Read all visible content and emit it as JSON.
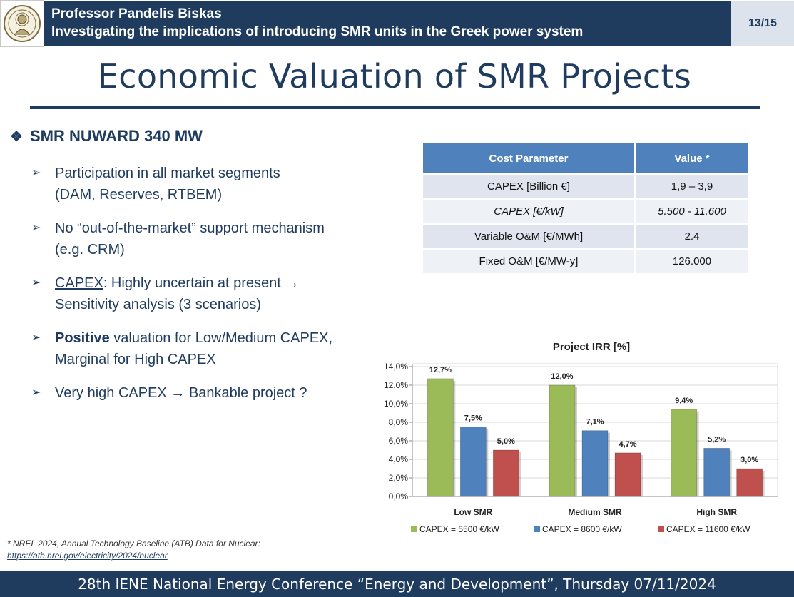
{
  "header": {
    "line1": "Professor Pandelis Biskas",
    "line2": "Investigating the implications of introducing SMR units in the Greek power system",
    "page": "13/15"
  },
  "title": "Economic Valuation of SMR Projects",
  "main_bullet": "SMR NUWARD 340 MW",
  "bullets": [
    {
      "l1": "Participation in all market segments",
      "l2": "(DAM, Reserves, RTBEM)"
    },
    {
      "l1": "No “out-of-the-market” support mechanism",
      "l2": "(e.g. CRM)"
    },
    {
      "u": "CAPEX",
      "l1rest": ": Highly uncertain at present →",
      "l2": "Sensitivity analysis (3 scenarios)"
    },
    {
      "b": "Positive",
      "l1rest": " valuation for Low/Medium CAPEX,",
      "l2": "Marginal for High CAPEX"
    },
    {
      "l1": "Very high CAPEX → Bankable project ?"
    }
  ],
  "table": {
    "headers": [
      "Cost Parameter",
      "Value *"
    ],
    "rows": [
      [
        "CAPEX [Billion €]",
        "1,9 – 3,9"
      ],
      [
        "CAPEX [€/kW]",
        "5.500 - 11.600"
      ],
      [
        "Variable O&M [€/MWh]",
        "2.4"
      ],
      [
        "Fixed O&M [€/MW-y]",
        "126.000"
      ]
    ]
  },
  "chart_data": {
    "type": "bar",
    "title": "Project IRR [%]",
    "categories": [
      "Low SMR",
      "Medium SMR",
      "High SMR"
    ],
    "series": [
      {
        "name": "CAPEX = 5500 €/kW",
        "values": [
          12.7,
          12.0,
          9.4
        ],
        "labels": [
          "12,7%",
          "12,0%",
          "9,4%"
        ],
        "color": "#9bbb59"
      },
      {
        "name": "CAPEX = 8600 €/kW",
        "values": [
          7.5,
          7.1,
          5.2
        ],
        "labels": [
          "7,5%",
          "7,1%",
          "5,2%"
        ],
        "color": "#4f81bd"
      },
      {
        "name": "CAPEX = 11600 €/kW",
        "values": [
          5.0,
          4.7,
          3.0
        ],
        "labels": [
          "5,0%",
          "4,7%",
          "3,0%"
        ],
        "color": "#c0504d"
      }
    ],
    "yticks": [
      "14,0%",
      "12,0%",
      "10,0%",
      "8,0%",
      "6,0%",
      "4,0%",
      "2,0%",
      "0,0%"
    ],
    "ylim": [
      0,
      14
    ],
    "legend": "bottom"
  },
  "footnote": {
    "text": "* NREL 2024, Annual Technology Baseline (ATB) Data for Nuclear:",
    "link": "https://atb.nrel.gov/electricity/2024/nuclear"
  },
  "footer": "28th IENE National Energy Conference “Energy and Development”, Thursday 07/11/2024"
}
